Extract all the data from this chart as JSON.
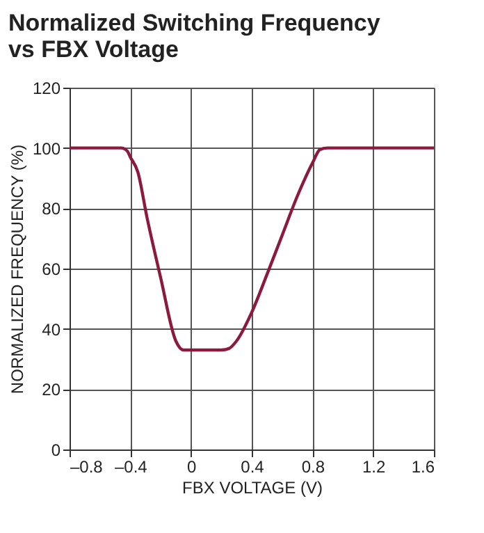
{
  "chart_data": {
    "type": "line",
    "title": "Normalized Switching Frequency\nvs FBX Voltage",
    "xlabel": "FBX VOLTAGE (V)",
    "ylabel": "NORMALIZED FREQUENCY (%)",
    "xlim": [
      -0.8,
      1.6
    ],
    "xticks": [
      {
        "value": -0.8,
        "label": "–0.8"
      },
      {
        "value": -0.4,
        "label": "–0.4"
      },
      0,
      0.4,
      0.8,
      1.2,
      1.6
    ],
    "ylim": [
      0,
      120
    ],
    "yticks": [
      0,
      20,
      40,
      60,
      80,
      100,
      120
    ],
    "grid": true,
    "marker": "none",
    "line_style": "solid",
    "series": [
      {
        "color": "#8b1a3e",
        "x": [
          -0.8,
          -0.46,
          -0.42,
          -0.4,
          -0.35,
          -0.29,
          -0.2,
          -0.1,
          -0.05,
          0,
          0.1,
          0.2,
          0.25,
          0.3,
          0.4,
          0.5,
          0.6,
          0.7,
          0.8,
          0.85,
          0.9,
          1.6
        ],
        "values": [
          100,
          100,
          99,
          97,
          92,
          77,
          57,
          36,
          33,
          33,
          33,
          33,
          33.5,
          36,
          45.5,
          58,
          71,
          84,
          95,
          99.5,
          100,
          100
        ]
      }
    ]
  }
}
